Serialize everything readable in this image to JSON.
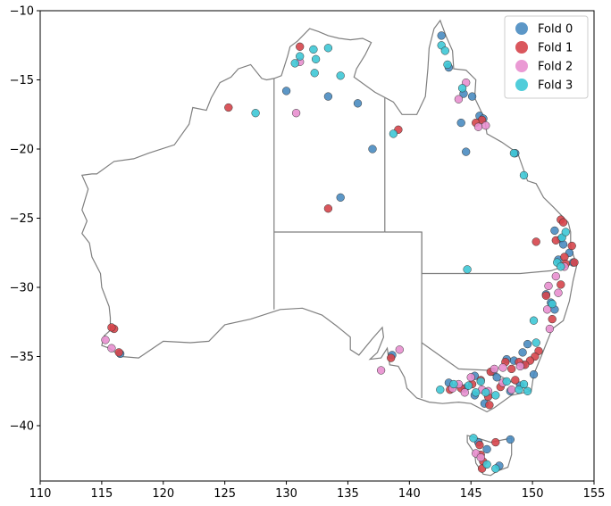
{
  "chart_data": {
    "type": "scatter",
    "title": "",
    "xlabel": "",
    "ylabel": "",
    "xlim": [
      110,
      155
    ],
    "ylim": [
      -44,
      -10
    ],
    "x_ticks": [
      110,
      115,
      120,
      125,
      130,
      135,
      140,
      145,
      150,
      155
    ],
    "y_ticks": [
      -40,
      -35,
      -30,
      -25,
      -20,
      -15,
      -10
    ],
    "x_tick_labels": [
      "110",
      "115",
      "120",
      "125",
      "130",
      "135",
      "140",
      "145",
      "150",
      "155"
    ],
    "y_tick_labels": [
      "−40",
      "−35",
      "−30",
      "−25",
      "−20",
      "−15",
      "−10"
    ],
    "grid": false,
    "legend_position": "top-right",
    "basemap": "Australia coastline with state borders",
    "series": [
      {
        "name": "Fold 0",
        "color": "#4a8cc1",
        "points": [
          [
            130.0,
            -15.8
          ],
          [
            133.4,
            -16.2
          ],
          [
            135.8,
            -16.7
          ],
          [
            137.0,
            -20.0
          ],
          [
            134.4,
            -23.5
          ],
          [
            142.6,
            -11.8
          ],
          [
            143.2,
            -14.1
          ],
          [
            144.4,
            -16.0
          ],
          [
            145.1,
            -16.2
          ],
          [
            145.7,
            -17.6
          ],
          [
            146.0,
            -17.8
          ],
          [
            144.2,
            -18.1
          ],
          [
            144.6,
            -20.2
          ],
          [
            148.6,
            -20.3
          ],
          [
            151.8,
            -25.9
          ],
          [
            152.3,
            -26.5
          ],
          [
            152.5,
            -26.9
          ],
          [
            153.0,
            -27.5
          ],
          [
            152.1,
            -28.0
          ],
          [
            153.3,
            -28.2
          ],
          [
            151.1,
            -30.5
          ],
          [
            151.5,
            -31.1
          ],
          [
            151.8,
            -31.6
          ],
          [
            149.6,
            -34.1
          ],
          [
            149.2,
            -34.7
          ],
          [
            148.5,
            -35.3
          ],
          [
            146.8,
            -36.1
          ],
          [
            145.3,
            -36.4
          ],
          [
            143.2,
            -36.9
          ],
          [
            144.5,
            -37.3
          ],
          [
            145.3,
            -37.8
          ],
          [
            146.1,
            -38.4
          ],
          [
            148.2,
            -37.5
          ],
          [
            149.0,
            -37.1
          ],
          [
            150.1,
            -36.3
          ],
          [
            149.2,
            -35.6
          ],
          [
            147.9,
            -35.2
          ],
          [
            147.1,
            -36.5
          ],
          [
            145.6,
            -41.2
          ],
          [
            146.3,
            -41.7
          ],
          [
            147.3,
            -42.9
          ],
          [
            148.2,
            -41.0
          ],
          [
            116.5,
            -34.8
          ],
          [
            138.6,
            -34.9
          ]
        ]
      },
      {
        "name": "Fold 1",
        "color": "#d6454b",
        "points": [
          [
            125.3,
            -17.0
          ],
          [
            131.1,
            -12.6
          ],
          [
            133.4,
            -24.3
          ],
          [
            139.1,
            -18.6
          ],
          [
            145.9,
            -17.9
          ],
          [
            145.4,
            -18.1
          ],
          [
            116.0,
            -33.0
          ],
          [
            115.8,
            -32.9
          ],
          [
            116.4,
            -34.7
          ],
          [
            150.3,
            -26.7
          ],
          [
            152.3,
            -25.1
          ],
          [
            152.5,
            -25.3
          ],
          [
            153.2,
            -27.0
          ],
          [
            152.6,
            -27.8
          ],
          [
            153.4,
            -28.2
          ],
          [
            151.9,
            -26.6
          ],
          [
            152.7,
            -28.3
          ],
          [
            152.3,
            -29.8
          ],
          [
            151.1,
            -30.6
          ],
          [
            151.6,
            -32.3
          ],
          [
            150.5,
            -34.6
          ],
          [
            150.2,
            -35.0
          ],
          [
            149.8,
            -35.3
          ],
          [
            149.4,
            -35.6
          ],
          [
            148.9,
            -35.4
          ],
          [
            147.8,
            -35.4
          ],
          [
            146.6,
            -36.1
          ],
          [
            145.8,
            -36.7
          ],
          [
            145.1,
            -37.0
          ],
          [
            144.2,
            -37.3
          ],
          [
            143.3,
            -37.4
          ],
          [
            146.4,
            -37.9
          ],
          [
            147.4,
            -37.2
          ],
          [
            148.6,
            -36.7
          ],
          [
            146.5,
            -38.5
          ],
          [
            145.7,
            -41.4
          ],
          [
            147.0,
            -41.2
          ],
          [
            145.8,
            -42.1
          ],
          [
            146.0,
            -42.6
          ],
          [
            145.9,
            -43.1
          ],
          [
            138.5,
            -35.1
          ],
          [
            148.3,
            -35.9
          ]
        ]
      },
      {
        "name": "Fold 2",
        "color": "#e88fcf",
        "points": [
          [
            131.1,
            -13.7
          ],
          [
            130.8,
            -17.4
          ],
          [
            144.6,
            -15.2
          ],
          [
            144.0,
            -16.4
          ],
          [
            145.6,
            -18.4
          ],
          [
            146.2,
            -18.3
          ],
          [
            115.3,
            -33.8
          ],
          [
            115.8,
            -34.4
          ],
          [
            152.6,
            -28.5
          ],
          [
            151.3,
            -29.9
          ],
          [
            152.1,
            -30.4
          ],
          [
            151.2,
            -31.6
          ],
          [
            151.4,
            -33.0
          ],
          [
            149.0,
            -35.7
          ],
          [
            147.6,
            -35.8
          ],
          [
            146.9,
            -35.9
          ],
          [
            145.0,
            -36.5
          ],
          [
            144.0,
            -37.0
          ],
          [
            143.5,
            -37.3
          ],
          [
            144.5,
            -37.6
          ],
          [
            145.9,
            -37.4
          ],
          [
            147.6,
            -36.9
          ],
          [
            148.3,
            -37.4
          ],
          [
            146.4,
            -37.5
          ],
          [
            145.4,
            -42.0
          ],
          [
            145.8,
            -42.3
          ],
          [
            137.7,
            -36.0
          ],
          [
            139.2,
            -34.5
          ],
          [
            151.9,
            -29.2
          ]
        ]
      },
      {
        "name": "Fold 3",
        "color": "#3ec8d6",
        "points": [
          [
            130.7,
            -13.8
          ],
          [
            131.1,
            -13.3
          ],
          [
            132.2,
            -12.8
          ],
          [
            132.4,
            -13.5
          ],
          [
            133.4,
            -12.7
          ],
          [
            134.4,
            -14.7
          ],
          [
            132.3,
            -14.5
          ],
          [
            127.5,
            -17.4
          ],
          [
            138.7,
            -18.9
          ],
          [
            142.6,
            -12.5
          ],
          [
            142.9,
            -12.9
          ],
          [
            143.1,
            -13.9
          ],
          [
            144.3,
            -15.6
          ],
          [
            148.5,
            -20.3
          ],
          [
            149.3,
            -21.9
          ],
          [
            144.7,
            -28.7
          ],
          [
            152.4,
            -26.4
          ],
          [
            152.7,
            -26.0
          ],
          [
            152.0,
            -28.2
          ],
          [
            152.3,
            -28.5
          ],
          [
            151.6,
            -31.2
          ],
          [
            150.1,
            -32.4
          ],
          [
            150.3,
            -34.0
          ],
          [
            148.9,
            -37.4
          ],
          [
            149.6,
            -37.5
          ],
          [
            142.5,
            -37.4
          ],
          [
            143.6,
            -37.0
          ],
          [
            144.8,
            -37.1
          ],
          [
            145.4,
            -37.6
          ],
          [
            146.2,
            -37.6
          ],
          [
            147.0,
            -37.8
          ],
          [
            147.9,
            -36.8
          ],
          [
            145.8,
            -36.8
          ],
          [
            145.2,
            -40.9
          ],
          [
            146.3,
            -42.8
          ],
          [
            147.0,
            -43.1
          ],
          [
            149.3,
            -37.0
          ]
        ]
      }
    ]
  }
}
